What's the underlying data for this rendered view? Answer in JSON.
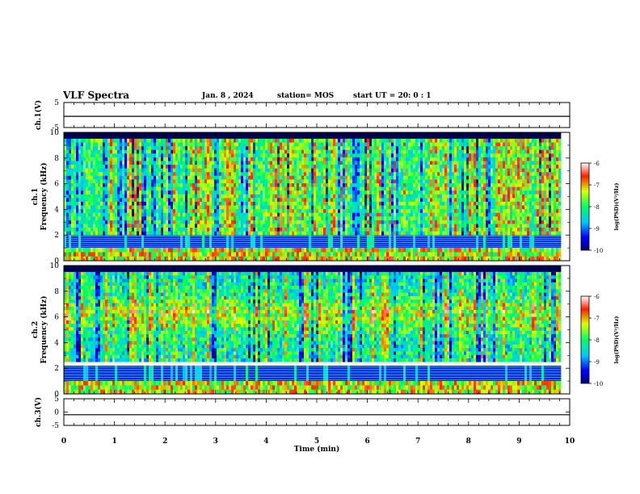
{
  "header": {
    "title": "VLF Spectra",
    "date": "Jan. 8 , 2024",
    "station": "station= MOS",
    "start": "start UT = 20: 0 : 1"
  },
  "chart_data": [
    {
      "type": "line",
      "panel": "ch1-waveform",
      "ylabel": "ch.1(V)",
      "ylim": [
        -5,
        5
      ],
      "yticks": [
        "5",
        "-5"
      ],
      "x": [
        0,
        10
      ],
      "values": [
        -0.5,
        -0.5
      ],
      "color": "#000000"
    },
    {
      "type": "heatmap",
      "panel": "ch1-spectrogram",
      "ylabel": "ch.1\nFrequency (kHz)",
      "ylim": [
        0,
        10
      ],
      "yticks": [
        "0",
        "2",
        "4",
        "6",
        "8",
        "10"
      ],
      "xlim": [
        0,
        9.83
      ],
      "colorbar": {
        "label": "log(PSD)(V²/Hz)",
        "range": [
          -10,
          -6
        ],
        "ticks": [
          "-6",
          "-7",
          "-8",
          "-9",
          "-10"
        ]
      },
      "bands": {
        "red_low_khz": [
          0,
          1
        ],
        "blue_band_khz": [
          1,
          2
        ],
        "active_khz": [
          2,
          9.5
        ]
      }
    },
    {
      "type": "heatmap",
      "panel": "ch2-spectrogram",
      "ylabel": "ch.2\nFrequency (kHz)",
      "ylim": [
        0,
        10
      ],
      "yticks": [
        "0",
        "2",
        "4",
        "6",
        "8",
        "10"
      ],
      "xlim": [
        0,
        9.83
      ],
      "colorbar": {
        "label": "log(PSD)(V²/Hz)",
        "range": [
          -10,
          -6
        ],
        "ticks": [
          "-6",
          "-7",
          "-8",
          "-9",
          "-10"
        ]
      },
      "bands": {
        "red_low_khz": [
          0,
          1
        ],
        "blue_band_khz": [
          1,
          2.2
        ],
        "active_khz": [
          2.5,
          9.5
        ]
      }
    },
    {
      "type": "line",
      "panel": "ch3-waveform",
      "ylabel": "ch.3(V)",
      "ylim": [
        -5,
        5
      ],
      "yticks": [
        "5",
        "0",
        "-5"
      ],
      "x": [
        0,
        10
      ],
      "values": [
        -1,
        -1
      ],
      "color": "#000000"
    }
  ],
  "xaxis": {
    "label": "Time (min)",
    "range": [
      0,
      10
    ],
    "ticks": [
      "0",
      "1",
      "2",
      "3",
      "4",
      "5",
      "6",
      "7",
      "8",
      "9",
      "10"
    ]
  },
  "colors": {
    "axis": "#000000",
    "background": "#ffffff"
  }
}
